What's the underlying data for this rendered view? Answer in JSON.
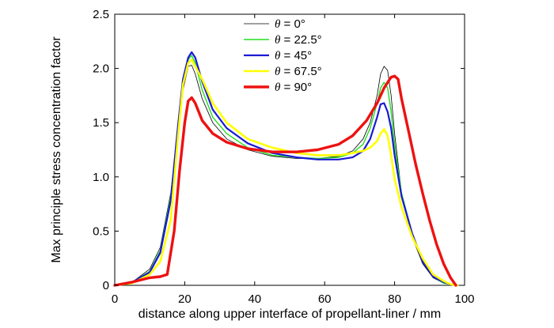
{
  "chart_data": {
    "type": "line",
    "xlabel": "distance along upper interface of propellant-liner / mm",
    "ylabel": "Max principle stress concentration factor",
    "xlim": [
      0,
      100
    ],
    "ylim": [
      0,
      2.5
    ],
    "xticks": [
      0,
      20,
      40,
      60,
      80,
      100
    ],
    "xtick_labels": [
      "0",
      "20",
      "40",
      "60",
      "80",
      "100"
    ],
    "yticks": [
      0,
      0.5,
      1.0,
      1.5,
      2.0,
      2.5
    ],
    "ytick_labels": [
      "0",
      "0.5",
      "1.0",
      "1.5",
      "2.0",
      "2.5"
    ],
    "grid": false,
    "legend_position": "top-center",
    "series": [
      {
        "name": "θ = 0°",
        "theta": "θ",
        "label_rest": " = 0°",
        "color": "#000000",
        "stroke": 0.8,
        "x": [
          0,
          5,
          10,
          13,
          16,
          18,
          19.5,
          21,
          22,
          23,
          25,
          28,
          32,
          38,
          45,
          52,
          58,
          64,
          68,
          71,
          73,
          75,
          76,
          77,
          78,
          79,
          80,
          82,
          85,
          88,
          91,
          94,
          96,
          98
        ],
        "y": [
          0,
          0.03,
          0.15,
          0.35,
          0.85,
          1.4,
          1.8,
          2.02,
          2.03,
          1.95,
          1.72,
          1.5,
          1.35,
          1.25,
          1.19,
          1.17,
          1.17,
          1.19,
          1.24,
          1.35,
          1.5,
          1.75,
          1.95,
          2.02,
          1.98,
          1.75,
          1.4,
          0.85,
          0.45,
          0.2,
          0.07,
          0.02,
          0.01,
          0
        ]
      },
      {
        "name": "θ = 22.5°",
        "theta": "θ",
        "label_rest": " = 22.5°",
        "color": "#22dd22",
        "stroke": 1.4,
        "x": [
          0,
          5,
          10,
          13,
          16,
          18,
          19.5,
          21,
          22,
          23,
          25,
          28,
          32,
          38,
          45,
          52,
          58,
          64,
          68,
          71,
          73,
          75,
          76,
          77,
          78,
          79,
          80,
          82,
          85,
          88,
          91,
          94,
          96,
          98
        ],
        "y": [
          0,
          0.03,
          0.13,
          0.32,
          0.82,
          1.45,
          1.88,
          2.08,
          2.12,
          2.05,
          1.8,
          1.55,
          1.4,
          1.27,
          1.2,
          1.18,
          1.17,
          1.18,
          1.22,
          1.3,
          1.45,
          1.68,
          1.82,
          1.87,
          1.82,
          1.6,
          1.3,
          0.85,
          0.48,
          0.22,
          0.08,
          0.02,
          0.01,
          0
        ]
      },
      {
        "name": "θ = 45°",
        "theta": "θ",
        "label_rest": " = 45°",
        "color": "#1a1ad6",
        "stroke": 2.2,
        "x": [
          0,
          5,
          10,
          13,
          16,
          18,
          19.5,
          21,
          22,
          23,
          25,
          28,
          32,
          38,
          45,
          52,
          58,
          64,
          68,
          71,
          73,
          75,
          76,
          77,
          78,
          79,
          80,
          82,
          85,
          88,
          91,
          94,
          96,
          98
        ],
        "y": [
          0,
          0.03,
          0.12,
          0.3,
          0.78,
          1.45,
          1.9,
          2.1,
          2.15,
          2.1,
          1.88,
          1.62,
          1.45,
          1.31,
          1.22,
          1.18,
          1.16,
          1.16,
          1.18,
          1.24,
          1.35,
          1.55,
          1.67,
          1.68,
          1.6,
          1.45,
          1.2,
          0.82,
          0.48,
          0.22,
          0.08,
          0.03,
          0.01,
          0
        ]
      },
      {
        "name": "θ = 67.5°",
        "theta": "θ",
        "label_rest": " = 67.5°",
        "color": "#ffff00",
        "stroke": 2.6,
        "x": [
          0,
          5,
          10,
          13,
          16,
          18,
          19.5,
          21,
          22,
          23,
          25,
          28,
          32,
          38,
          45,
          52,
          58,
          64,
          68,
          71,
          73,
          75,
          76,
          77,
          78,
          79,
          80,
          82,
          85,
          88,
          91,
          94,
          96,
          98
        ],
        "y": [
          0,
          0.02,
          0.1,
          0.22,
          0.6,
          1.35,
          1.85,
          2.05,
          2.08,
          2.02,
          1.9,
          1.68,
          1.5,
          1.35,
          1.27,
          1.22,
          1.2,
          1.2,
          1.22,
          1.24,
          1.27,
          1.33,
          1.4,
          1.44,
          1.38,
          1.2,
          0.98,
          0.72,
          0.45,
          0.25,
          0.1,
          0.04,
          0.01,
          0
        ]
      },
      {
        "name": "θ = 90°",
        "theta": "θ",
        "label_rest": " = 90°",
        "color": "#ee1111",
        "stroke": 3.4,
        "x": [
          0,
          5,
          10,
          13,
          15,
          17,
          18.5,
          20,
          21,
          22,
          23,
          25,
          28,
          32,
          38,
          45,
          52,
          58,
          64,
          68,
          72,
          75,
          77,
          79,
          80,
          81,
          82,
          84,
          86,
          88,
          90,
          92,
          94,
          96,
          97.5
        ],
        "y": [
          0,
          0.03,
          0.07,
          0.08,
          0.1,
          0.5,
          1.05,
          1.5,
          1.7,
          1.73,
          1.68,
          1.52,
          1.4,
          1.32,
          1.26,
          1.23,
          1.23,
          1.25,
          1.3,
          1.38,
          1.52,
          1.68,
          1.82,
          1.92,
          1.93,
          1.9,
          1.72,
          1.42,
          1.12,
          0.85,
          0.6,
          0.38,
          0.2,
          0.07,
          0
        ]
      }
    ]
  }
}
